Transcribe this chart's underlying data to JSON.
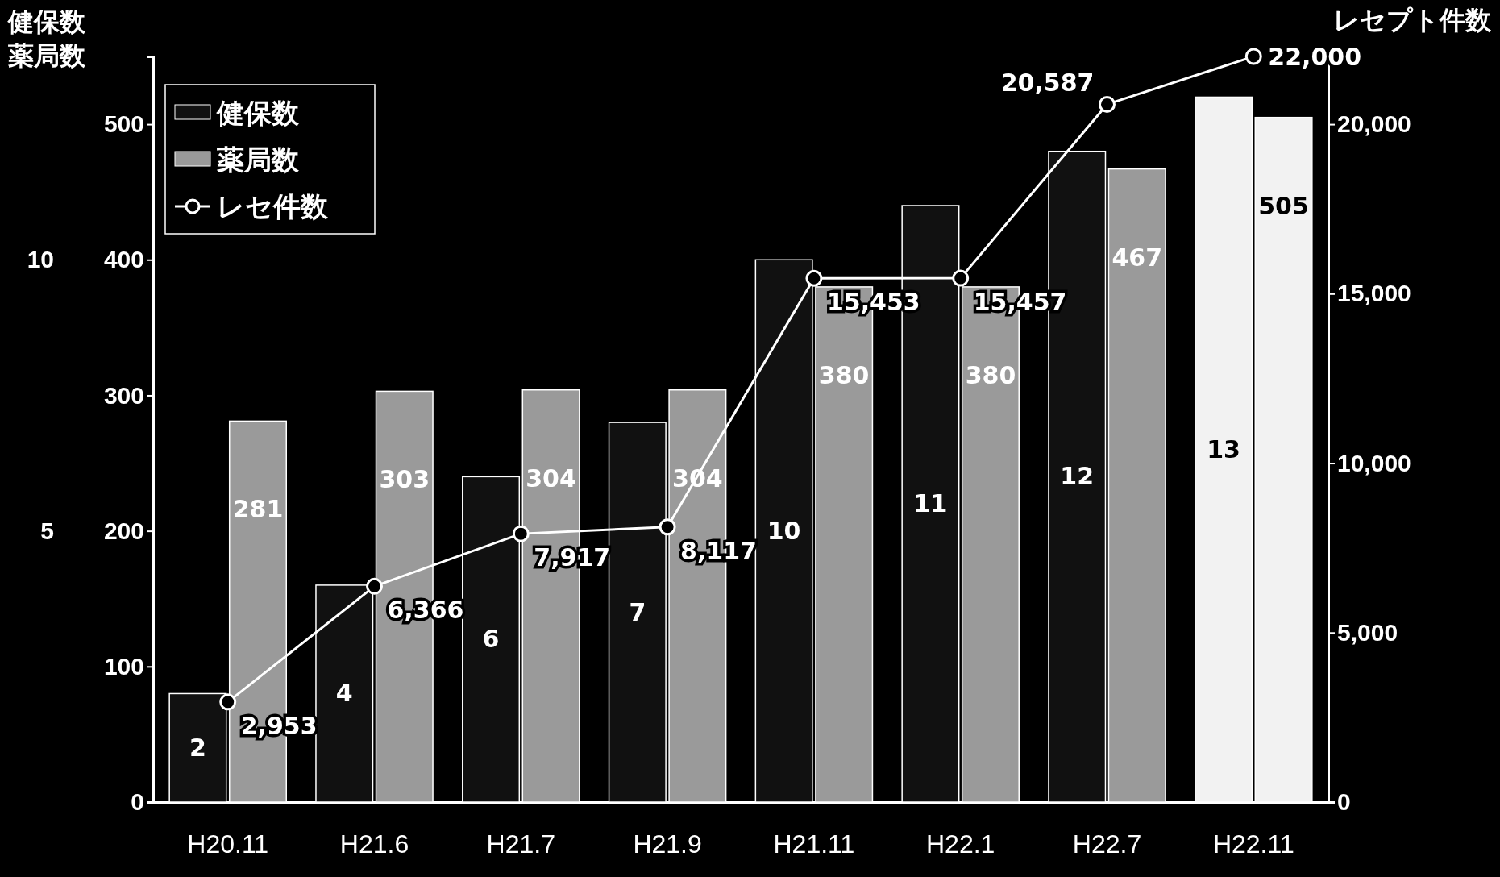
{
  "chart_data": {
    "type": "bar",
    "ylabel": "薬局数",
    "y3label": "健保数",
    "y2label": "レセプト件数",
    "categories": [
      "H20.11",
      "H21.6",
      "H21.7",
      "H21.9",
      "H21.11",
      "H22.1",
      "H22.7",
      "H22.11"
    ],
    "series": [
      {
        "name": "健保数",
        "axis": "y3",
        "color": "#111111",
        "colors": [
          "#111111",
          "#111111",
          "#111111",
          "#111111",
          "#111111",
          "#111111",
          "#111111",
          "#f2f2f2"
        ],
        "values": [
          2,
          4,
          6,
          7,
          10,
          11,
          12,
          13
        ]
      },
      {
        "name": "薬局数",
        "axis": "y",
        "color": "#9a9a9a",
        "colors": [
          "#9a9a9a",
          "#9a9a9a",
          "#9a9a9a",
          "#9a9a9a",
          "#9a9a9a",
          "#9a9a9a",
          "#9a9a9a",
          "#f2f2f2"
        ],
        "values": [
          281,
          303,
          304,
          304,
          380,
          380,
          467,
          505
        ]
      },
      {
        "name": "レセ件数",
        "type": "line",
        "axis": "y2",
        "color": "#ffffff",
        "values": [
          2953,
          6366,
          7917,
          8117,
          15453,
          15457,
          20587,
          22000
        ],
        "value_labels": [
          "2,953",
          "6,366",
          "7,917",
          "8,117",
          "15,453",
          "15,457",
          "20,587",
          "22,000"
        ]
      }
    ],
    "ylim": [
      0,
      550
    ],
    "yticks": [
      0,
      100,
      200,
      300,
      400,
      500
    ],
    "y3lim": [
      0,
      13.75
    ],
    "y3ticks": [
      5,
      10
    ],
    "y2lim": [
      0,
      22000
    ],
    "y2ticks": [
      0,
      {
        "value": 5000,
        "label": "5,000"
      },
      {
        "value": 10000,
        "label": "10,000"
      },
      {
        "value": 15000,
        "label": "15,000"
      },
      {
        "value": 20000,
        "label": "20,000"
      }
    ],
    "data_labels": true,
    "legend": "top left",
    "marker": "circle",
    "line_style": "solid"
  }
}
